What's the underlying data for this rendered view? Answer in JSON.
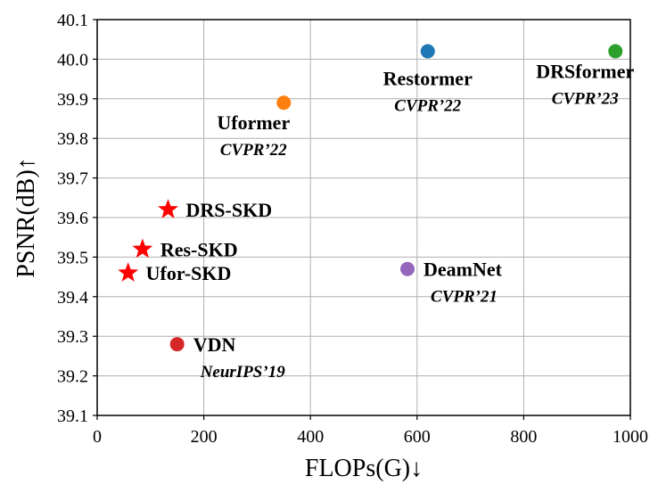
{
  "chart_data": {
    "type": "scatter",
    "title": "",
    "xlabel": "FLOPs(G)↓",
    "ylabel": "PSNR(dB)↑",
    "xlim": [
      0,
      1000
    ],
    "ylim": [
      39.1,
      40.1
    ],
    "x_ticks": [
      "0",
      "200",
      "400",
      "600",
      "800",
      "1000"
    ],
    "y_ticks": [
      "39.1",
      "39.2",
      "39.3",
      "39.4",
      "39.5",
      "39.6",
      "39.7",
      "39.8",
      "39.9",
      "40.0",
      "40.1"
    ],
    "grid": true,
    "points": [
      {
        "name": "Restormer",
        "venue": "CVPR’22",
        "x": 620,
        "y": 40.02,
        "marker": "circle",
        "color": "#1f77b4",
        "label_side": "below"
      },
      {
        "name": "DRSformer",
        "venue": "CVPR’23",
        "x": 972,
        "y": 40.02,
        "marker": "circle",
        "color": "#2ca02c",
        "label_side": "below-left"
      },
      {
        "name": "Uformer",
        "venue": "CVPR’22",
        "x": 350,
        "y": 39.89,
        "marker": "circle",
        "color": "#ff7f0e",
        "label_side": "below-left"
      },
      {
        "name": "DeamNet",
        "venue": "CVPR’21",
        "x": 582,
        "y": 39.47,
        "marker": "circle",
        "color": "#9467bd",
        "label_side": "right"
      },
      {
        "name": "VDN",
        "venue": "NeurIPS’19",
        "x": 150,
        "y": 39.28,
        "marker": "circle",
        "color": "#d62728",
        "label_side": "right"
      },
      {
        "name": "DRS-SKD",
        "venue": "",
        "x": 133,
        "y": 39.62,
        "marker": "star",
        "color": "#ff0000",
        "label_side": "right"
      },
      {
        "name": "Res-SKD",
        "venue": "",
        "x": 85,
        "y": 39.52,
        "marker": "star",
        "color": "#ff0000",
        "label_side": "right"
      },
      {
        "name": "Ufor-SKD",
        "venue": "",
        "x": 58,
        "y": 39.46,
        "marker": "star",
        "color": "#ff0000",
        "label_side": "right"
      }
    ]
  }
}
